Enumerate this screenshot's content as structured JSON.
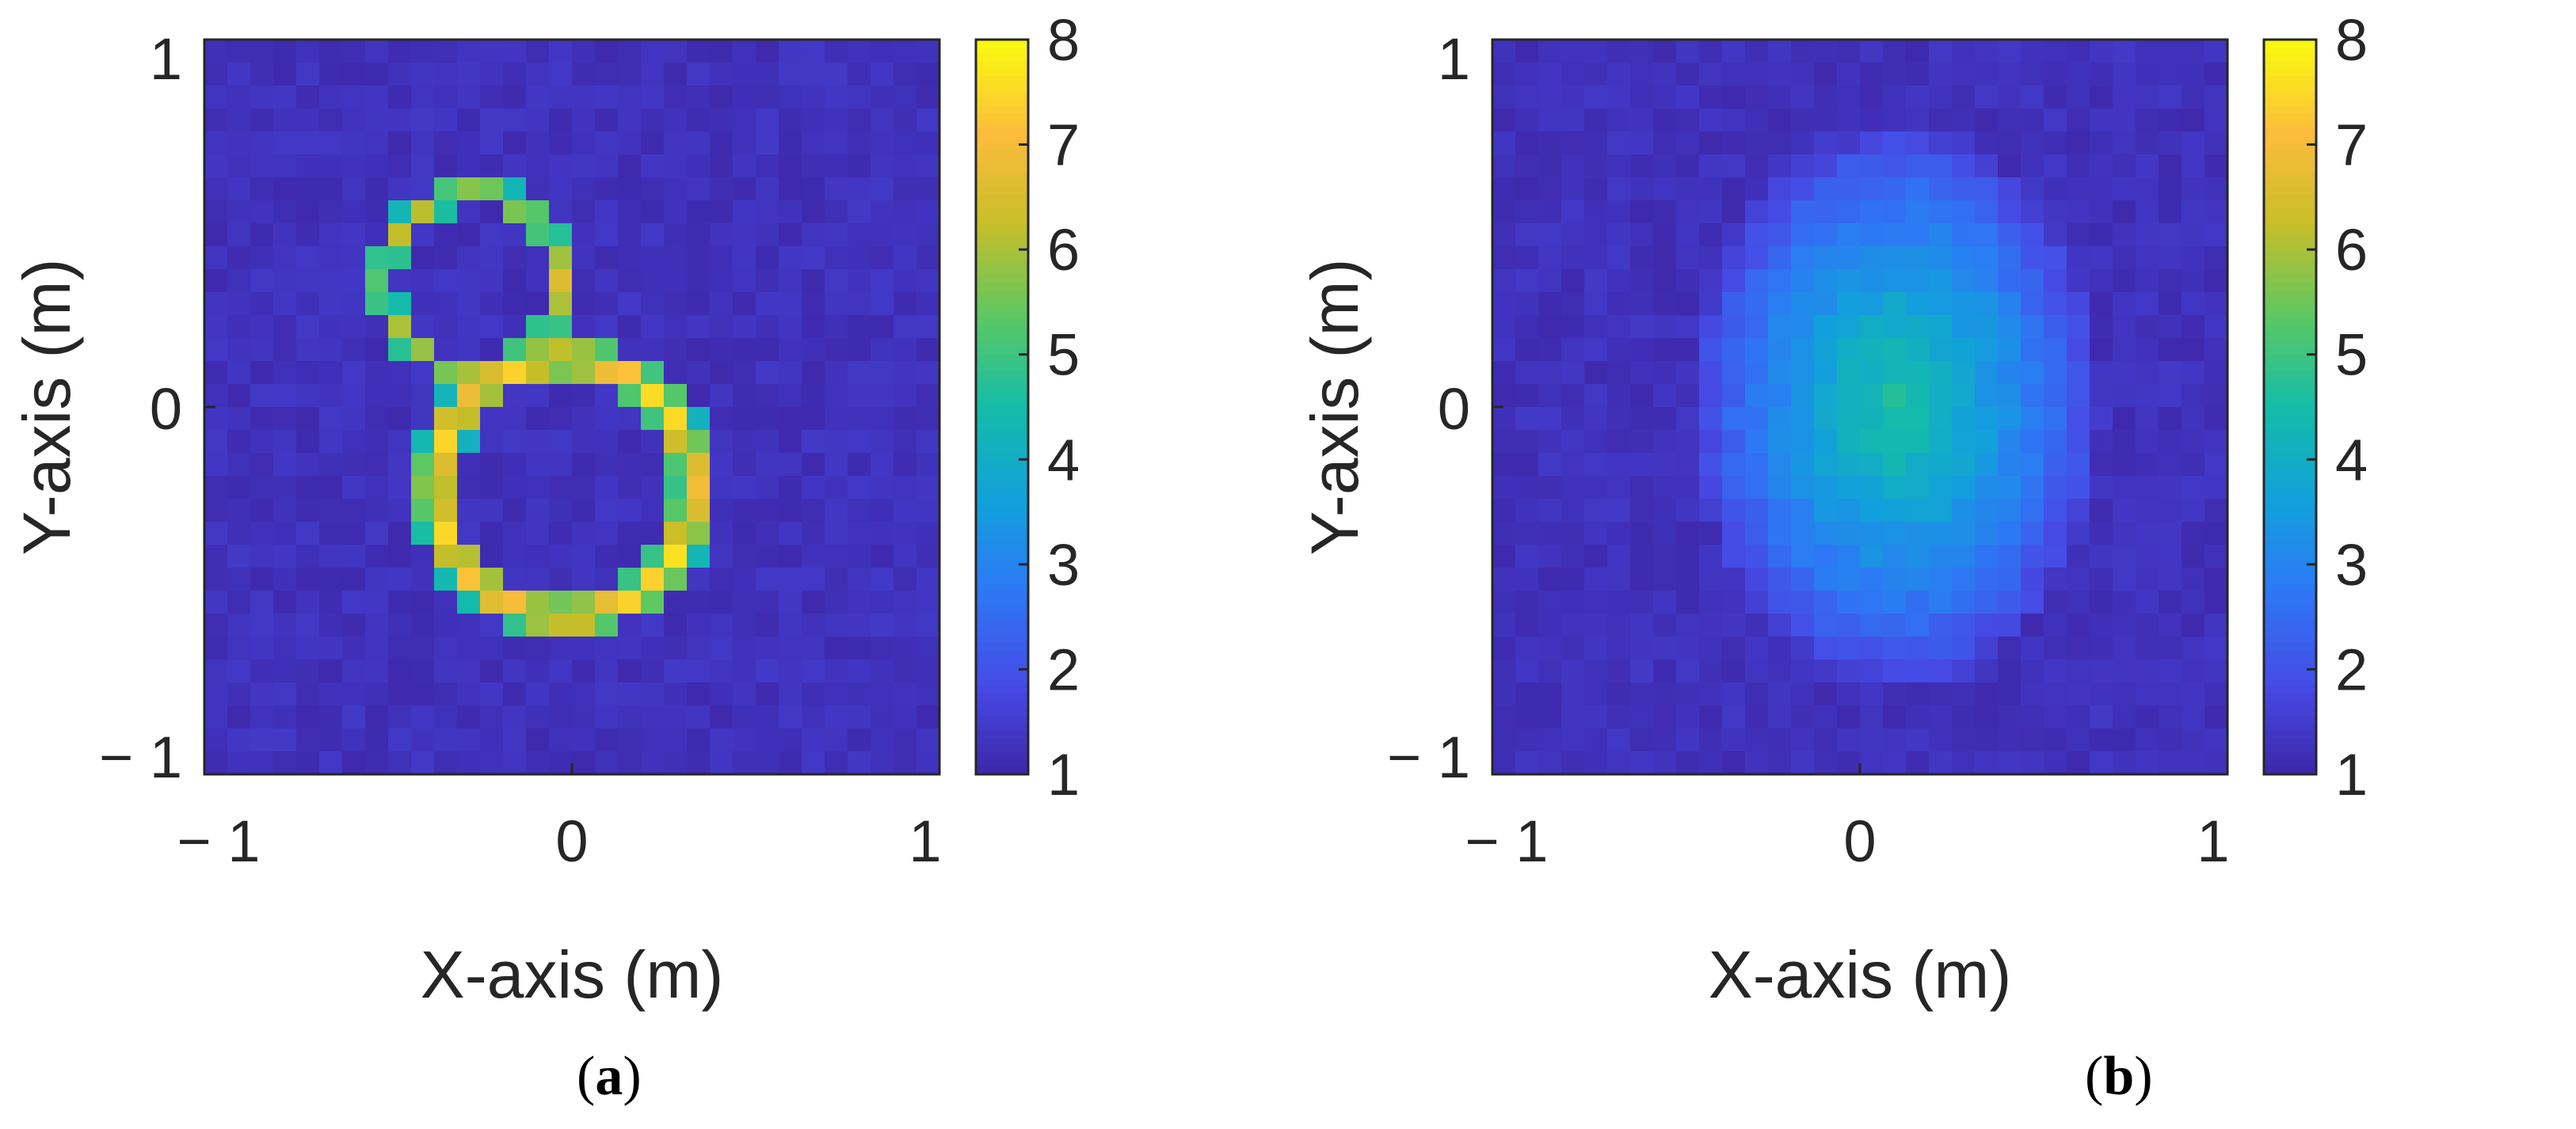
{
  "chart_data": [
    {
      "type": "heatmap",
      "caption_letter": "a",
      "xlabel": "X-axis (m)",
      "ylabel": "Y-axis (m)",
      "xlim": [
        -1,
        1
      ],
      "ylim": [
        -1,
        1
      ],
      "x_ticks": [
        "− 1",
        "0",
        "1"
      ],
      "y_ticks": [
        "1",
        "0",
        "− 1"
      ],
      "colorbar": {
        "range": [
          1,
          8
        ],
        "ticks": [
          "1",
          "2",
          "3",
          "4",
          "5",
          "6",
          "7",
          "8"
        ],
        "colormap": "parula"
      },
      "grid": false,
      "background_value": 1.25,
      "shapes": [
        {
          "shape": "ring",
          "center": [
            -0.27,
            0.34
          ],
          "radii": [
            0.2,
            0.28
          ],
          "peak": 7.7
        },
        {
          "shape": "ring",
          "center": [
            -0.02,
            -0.22
          ],
          "radii": [
            0.29,
            0.41
          ],
          "peak": 7.8
        }
      ]
    },
    {
      "type": "heatmap",
      "caption_letter": "b",
      "xlabel": "X-axis (m)",
      "ylabel": "Y-axis (m)",
      "xlim": [
        -1,
        1
      ],
      "ylim": [
        -1,
        1
      ],
      "x_ticks": [
        "− 1",
        "0",
        "1"
      ],
      "y_ticks": [
        "1",
        "0",
        "− 1"
      ],
      "colorbar": {
        "range": [
          1,
          8
        ],
        "ticks": [
          "1",
          "2",
          "3",
          "4",
          "5",
          "6",
          "7",
          "8"
        ],
        "colormap": "parula"
      },
      "grid": false,
      "background_value": 1.25,
      "shapes": [
        {
          "shape": "blob",
          "center": [
            0.1,
            0.0
          ],
          "radii": [
            0.45,
            0.62
          ],
          "peak": 4.6
        }
      ]
    }
  ]
}
